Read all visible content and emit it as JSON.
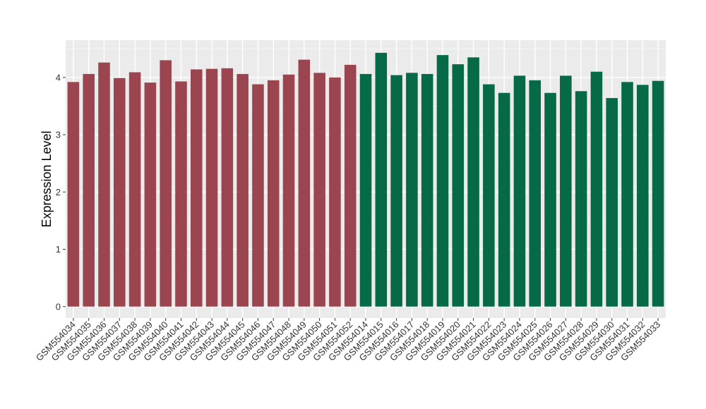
{
  "chart_data": {
    "type": "bar",
    "title": "",
    "xlabel": "",
    "ylabel": "Expression Level",
    "ylim": [
      -0.2,
      4.65
    ],
    "yticks": [
      0,
      1,
      2,
      3,
      4
    ],
    "grid": true,
    "panel_background": "#ebebeb",
    "categories": [
      "GSM554034",
      "GSM554035",
      "GSM554036",
      "GSM554037",
      "GSM554038",
      "GSM554039",
      "GSM554040",
      "GSM554041",
      "GSM554042",
      "GSM554043",
      "GSM554044",
      "GSM554045",
      "GSM554046",
      "GSM554047",
      "GSM554048",
      "GSM554049",
      "GSM554050",
      "GSM554051",
      "GSM554052",
      "GSM554014",
      "GSM554015",
      "GSM554016",
      "GSM554017",
      "GSM554018",
      "GSM554019",
      "GSM554020",
      "GSM554021",
      "GSM554022",
      "GSM554023",
      "GSM554024",
      "GSM554025",
      "GSM554026",
      "GSM554027",
      "GSM554028",
      "GSM554029",
      "GSM554030",
      "GSM554031",
      "GSM554032",
      "GSM554033"
    ],
    "values": [
      3.92,
      4.06,
      4.26,
      3.99,
      4.09,
      3.91,
      4.3,
      3.93,
      4.14,
      4.15,
      4.16,
      4.06,
      3.88,
      3.95,
      4.05,
      4.31,
      4.08,
      4.0,
      4.22,
      4.06,
      4.43,
      4.04,
      4.08,
      4.06,
      4.39,
      4.23,
      4.35,
      3.88,
      3.73,
      4.03,
      3.95,
      3.73,
      4.03,
      3.76,
      4.1,
      3.64,
      3.92,
      3.87,
      3.94
    ],
    "colors": [
      "#9b4550",
      "#9b4550",
      "#9b4550",
      "#9b4550",
      "#9b4550",
      "#9b4550",
      "#9b4550",
      "#9b4550",
      "#9b4550",
      "#9b4550",
      "#9b4550",
      "#9b4550",
      "#9b4550",
      "#9b4550",
      "#9b4550",
      "#9b4550",
      "#9b4550",
      "#9b4550",
      "#9b4550",
      "#056a45",
      "#056a45",
      "#056a45",
      "#056a45",
      "#056a45",
      "#056a45",
      "#056a45",
      "#056a45",
      "#056a45",
      "#056a45",
      "#056a45",
      "#056a45",
      "#056a45",
      "#056a45",
      "#056a45",
      "#056a45",
      "#056a45",
      "#056a45",
      "#056a45",
      "#056a45"
    ]
  }
}
